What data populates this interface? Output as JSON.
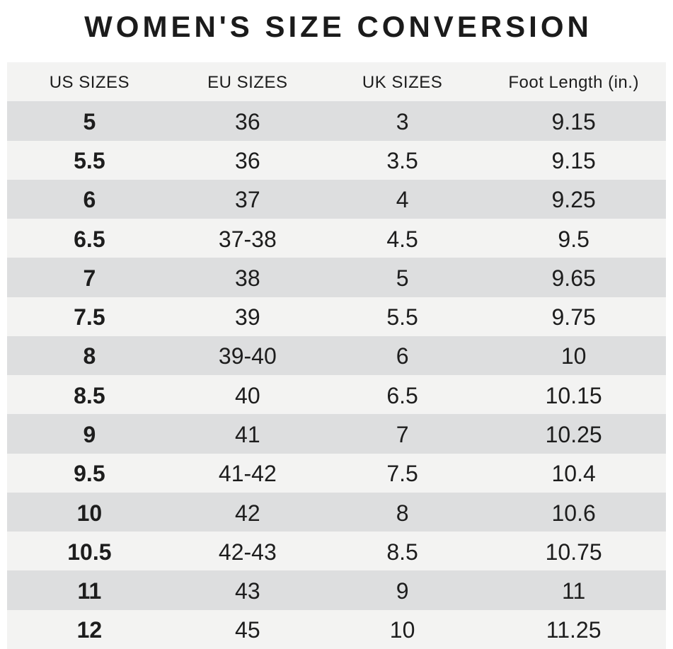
{
  "page_title": "WOMEN'S SIZE CONVERSION",
  "colors": {
    "page_background": "#ffffff",
    "header_row_bg": "#f2f2f1",
    "row_alt_dark": "#dddedf",
    "row_alt_light": "#f3f3f2",
    "text": "#1d1d1d",
    "title_text": "#1b1b1b"
  },
  "chart_data": {
    "type": "table",
    "title": "WOMEN'S SIZE CONVERSION",
    "columns": [
      "US SIZES",
      "EU SIZES",
      "UK SIZES",
      "Foot Length (in.)"
    ],
    "rows": [
      {
        "us": "5",
        "eu": "36",
        "uk": "3",
        "foot_length_in": "9.15"
      },
      {
        "us": "5.5",
        "eu": "36",
        "uk": "3.5",
        "foot_length_in": "9.15"
      },
      {
        "us": "6",
        "eu": "37",
        "uk": "4",
        "foot_length_in": "9.25"
      },
      {
        "us": "6.5",
        "eu": "37-38",
        "uk": "4.5",
        "foot_length_in": "9.5"
      },
      {
        "us": "7",
        "eu": "38",
        "uk": "5",
        "foot_length_in": "9.65"
      },
      {
        "us": "7.5",
        "eu": "39",
        "uk": "5.5",
        "foot_length_in": "9.75"
      },
      {
        "us": "8",
        "eu": "39-40",
        "uk": "6",
        "foot_length_in": "10"
      },
      {
        "us": "8.5",
        "eu": "40",
        "uk": "6.5",
        "foot_length_in": "10.15"
      },
      {
        "us": "9",
        "eu": "41",
        "uk": "7",
        "foot_length_in": "10.25"
      },
      {
        "us": "9.5",
        "eu": "41-42",
        "uk": "7.5",
        "foot_length_in": "10.4"
      },
      {
        "us": "10",
        "eu": "42",
        "uk": "8",
        "foot_length_in": "10.6"
      },
      {
        "us": "10.5",
        "eu": "42-43",
        "uk": "8.5",
        "foot_length_in": "10.75"
      },
      {
        "us": "11",
        "eu": "43",
        "uk": "9",
        "foot_length_in": "11"
      },
      {
        "us": "12",
        "eu": "45",
        "uk": "10",
        "foot_length_in": "11.25"
      }
    ]
  }
}
